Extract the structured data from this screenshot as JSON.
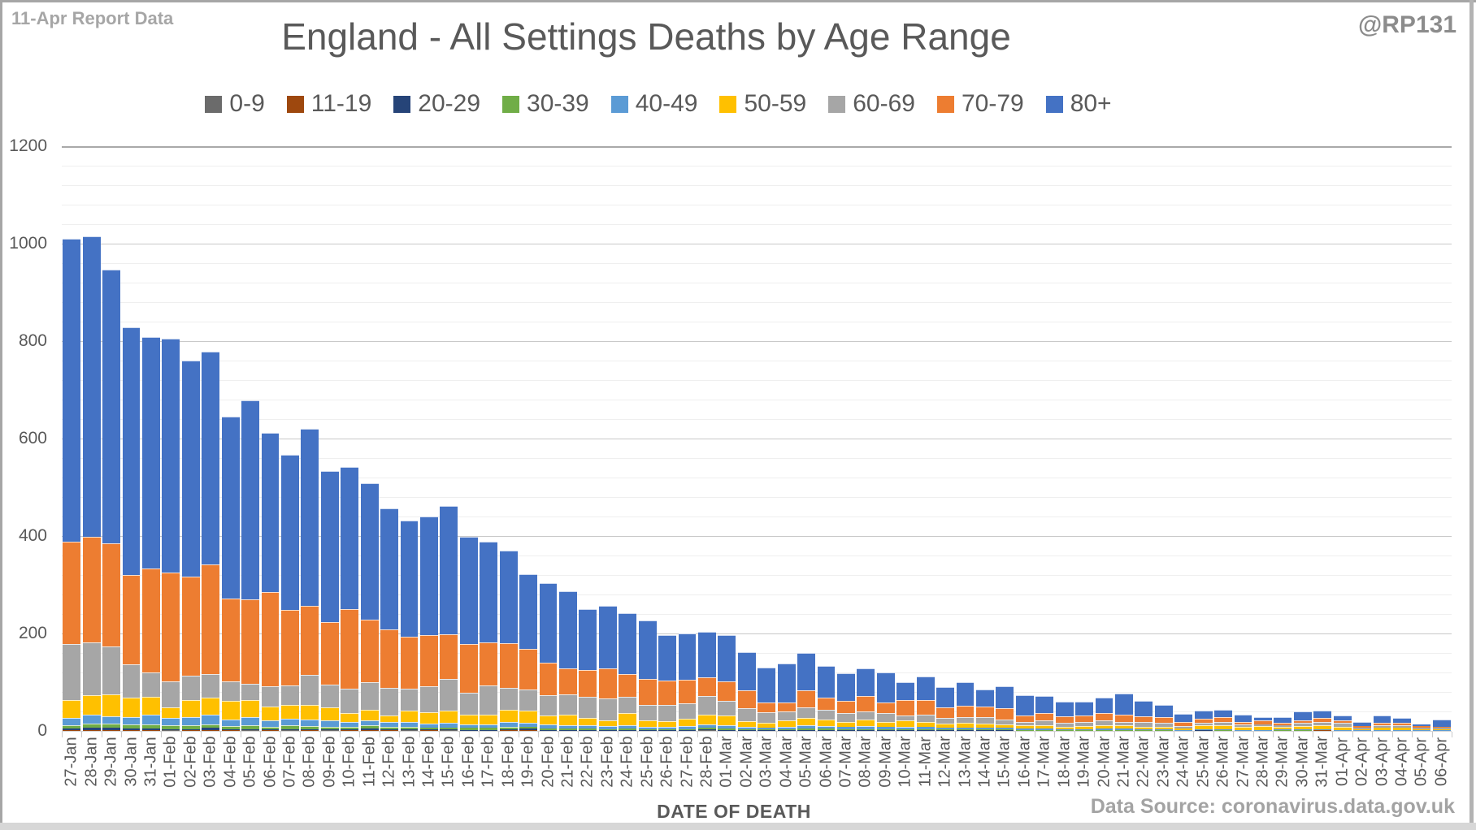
{
  "annotations": {
    "report": "11-Apr Report Data",
    "handle": "@RP131",
    "source": "Data Source: coronavirus.data.gov.uk"
  },
  "chart_data": {
    "type": "bar",
    "stacked": true,
    "title": "England - All Settings Deaths by Age Range",
    "xlabel": "DATE OF DEATH",
    "ylabel": "",
    "ylim": [
      0,
      1200
    ],
    "y_ticks": [
      0,
      200,
      400,
      600,
      800,
      1000,
      1200
    ],
    "y_minor_unit": 40,
    "grid": true,
    "legend_position": "top",
    "categories": [
      "27-Jan",
      "28-Jan",
      "29-Jan",
      "30-Jan",
      "31-Jan",
      "01-Feb",
      "02-Feb",
      "03-Feb",
      "04-Feb",
      "05-Feb",
      "06-Feb",
      "07-Feb",
      "08-Feb",
      "09-Feb",
      "10-Feb",
      "11-Feb",
      "12-Feb",
      "13-Feb",
      "14-Feb",
      "15-Feb",
      "16-Feb",
      "17-Feb",
      "18-Feb",
      "19-Feb",
      "20-Feb",
      "21-Feb",
      "22-Feb",
      "23-Feb",
      "24-Feb",
      "25-Feb",
      "26-Feb",
      "27-Feb",
      "28-Feb",
      "01-Mar",
      "02-Mar",
      "03-Mar",
      "04-Mar",
      "05-Mar",
      "06-Mar",
      "07-Mar",
      "08-Mar",
      "09-Mar",
      "10-Mar",
      "11-Mar",
      "12-Mar",
      "13-Mar",
      "14-Mar",
      "15-Mar",
      "16-Mar",
      "17-Mar",
      "18-Mar",
      "19-Mar",
      "20-Mar",
      "21-Mar",
      "22-Mar",
      "23-Mar",
      "24-Mar",
      "25-Mar",
      "26-Mar",
      "27-Mar",
      "28-Mar",
      "29-Mar",
      "30-Mar",
      "31-Mar",
      "01-Apr",
      "02-Apr",
      "03-Apr",
      "04-Apr",
      "05-Apr",
      "06-Apr"
    ],
    "series": [
      {
        "name": "0-9",
        "color": "#6B6B6B",
        "values": [
          1,
          1,
          1,
          1,
          0,
          1,
          0,
          1,
          0,
          1,
          0,
          1,
          0,
          1,
          0,
          1,
          0,
          1,
          0,
          1,
          0,
          1,
          0,
          0,
          1,
          0,
          1,
          0,
          1,
          0,
          1,
          0,
          1,
          0,
          1,
          0,
          1,
          0,
          1,
          0,
          1,
          0,
          1,
          0,
          1,
          0,
          1,
          0,
          1,
          0,
          1,
          0,
          1,
          0,
          1,
          0,
          0,
          0,
          0,
          0,
          0,
          0,
          0,
          0,
          0,
          0,
          0,
          0,
          0,
          0
        ]
      },
      {
        "name": "11-19",
        "color": "#9E480E",
        "values": [
          1,
          1,
          1,
          1,
          1,
          0,
          1,
          1,
          1,
          0,
          1,
          0,
          1,
          0,
          1,
          1,
          1,
          0,
          1,
          0,
          1,
          0,
          1,
          1,
          0,
          1,
          0,
          1,
          0,
          1,
          0,
          1,
          0,
          1,
          0,
          1,
          0,
          1,
          0,
          1,
          0,
          1,
          0,
          1,
          0,
          1,
          0,
          1,
          0,
          1,
          0,
          1,
          0,
          1,
          0,
          1,
          0,
          0,
          0,
          0,
          0,
          0,
          0,
          1,
          0,
          0,
          0,
          0,
          0,
          0
        ]
      },
      {
        "name": "20-29",
        "color": "#264478",
        "values": [
          3,
          4,
          4,
          3,
          4,
          3,
          3,
          4,
          2,
          3,
          2,
          3,
          2,
          2,
          2,
          3,
          2,
          2,
          2,
          2,
          1,
          1,
          2,
          4,
          1,
          1,
          1,
          1,
          1,
          1,
          1,
          1,
          2,
          1,
          1,
          1,
          1,
          1,
          1,
          1,
          1,
          1,
          1,
          1,
          1,
          1,
          1,
          1,
          0,
          0,
          0,
          0,
          0,
          0,
          0,
          0,
          0,
          1,
          0,
          0,
          1,
          0,
          0,
          0,
          0,
          0,
          0,
          0,
          0,
          0
        ]
      },
      {
        "name": "30-39",
        "color": "#70AD47",
        "values": [
          7,
          9,
          9,
          8,
          9,
          8,
          8,
          8,
          7,
          8,
          6,
          7,
          7,
          6,
          5,
          7,
          5,
          5,
          4,
          4,
          4,
          4,
          5,
          4,
          3,
          3,
          3,
          2,
          3,
          2,
          1,
          2,
          3,
          3,
          1,
          1,
          2,
          3,
          3,
          2,
          2,
          2,
          2,
          2,
          1,
          1,
          1,
          1,
          1,
          1,
          1,
          1,
          1,
          1,
          1,
          1,
          1,
          0,
          1,
          1,
          0,
          1,
          1,
          0,
          1,
          0,
          1,
          1,
          0,
          0
        ]
      },
      {
        "name": "40-49",
        "color": "#5B9BD5",
        "values": [
          14,
          18,
          15,
          16,
          19,
          15,
          16,
          19,
          13,
          16,
          12,
          14,
          14,
          13,
          10,
          10,
          10,
          10,
          8,
          10,
          8,
          7,
          11,
          8,
          8,
          7,
          6,
          6,
          7,
          5,
          5,
          6,
          8,
          7,
          5,
          4,
          5,
          6,
          5,
          4,
          6,
          4,
          5,
          4,
          4,
          4,
          3,
          3,
          3,
          3,
          2,
          2,
          3,
          3,
          2,
          2,
          1,
          2,
          2,
          1,
          1,
          2,
          2,
          2,
          1,
          1,
          1,
          1,
          1,
          1
        ]
      },
      {
        "name": "50-59",
        "color": "#FFC000",
        "values": [
          38,
          40,
          45,
          39,
          37,
          22,
          36,
          35,
          38,
          36,
          29,
          28,
          29,
          27,
          18,
          21,
          13,
          24,
          24,
          25,
          19,
          20,
          24,
          24,
          19,
          21,
          16,
          12,
          24,
          13,
          12,
          15,
          19,
          20,
          12,
          10,
          12,
          15,
          13,
          11,
          13,
          11,
          12,
          10,
          8,
          10,
          9,
          7,
          6,
          7,
          5,
          6,
          7,
          6,
          5,
          5,
          3,
          9,
          8,
          7,
          8,
          5,
          7,
          9,
          7,
          3,
          4,
          4,
          3,
          3
        ]
      },
      {
        "name": "60-69",
        "color": "#A6A6A6",
        "values": [
          114,
          109,
          98,
          69,
          50,
          52,
          50,
          49,
          40,
          33,
          42,
          41,
          62,
          46,
          50,
          57,
          57,
          44,
          53,
          65,
          45,
          60,
          45,
          44,
          41,
          42,
          43,
          44,
          34,
          31,
          33,
          32,
          38,
          30,
          26,
          22,
          19,
          22,
          20,
          18,
          17,
          18,
          11,
          16,
          11,
          12,
          13,
          10,
          7,
          9,
          8,
          8,
          9,
          8,
          9,
          8,
          5,
          5,
          7,
          5,
          4,
          4,
          7,
          7,
          7,
          3,
          5,
          6,
          3,
          2
        ]
      },
      {
        "name": "70-79",
        "color": "#ED7D31",
        "values": [
          210,
          217,
          212,
          183,
          213,
          224,
          203,
          225,
          171,
          173,
          193,
          154,
          142,
          128,
          164,
          128,
          120,
          107,
          104,
          92,
          101,
          88,
          92,
          84,
          67,
          54,
          55,
          63,
          47,
          53,
          50,
          48,
          39,
          39,
          37,
          19,
          19,
          35,
          25,
          25,
          31,
          21,
          32,
          30,
          22,
          22,
          22,
          23,
          14,
          16,
          13,
          14,
          15,
          14,
          12,
          11,
          8,
          8,
          10,
          5,
          7,
          5,
          5,
          7,
          5,
          3,
          6,
          5,
          3,
          2
        ]
      },
      {
        "name": "80+",
        "color": "#4472C4",
        "values": [
          622,
          616,
          562,
          508,
          475,
          480,
          443,
          436,
          373,
          408,
          326,
          319,
          363,
          310,
          292,
          280,
          249,
          239,
          244,
          263,
          220,
          208,
          190,
          153,
          163,
          158,
          125,
          128,
          125,
          120,
          93,
          95,
          93,
          95,
          78,
          72,
          80,
          77,
          66,
          56,
          57,
          62,
          36,
          48,
          42,
          49,
          35,
          46,
          41,
          34,
          30,
          28,
          32,
          44,
          31,
          25,
          17,
          17,
          16,
          14,
          7,
          12,
          18,
          16,
          11,
          8,
          15,
          10,
          4,
          15
        ]
      }
    ]
  }
}
